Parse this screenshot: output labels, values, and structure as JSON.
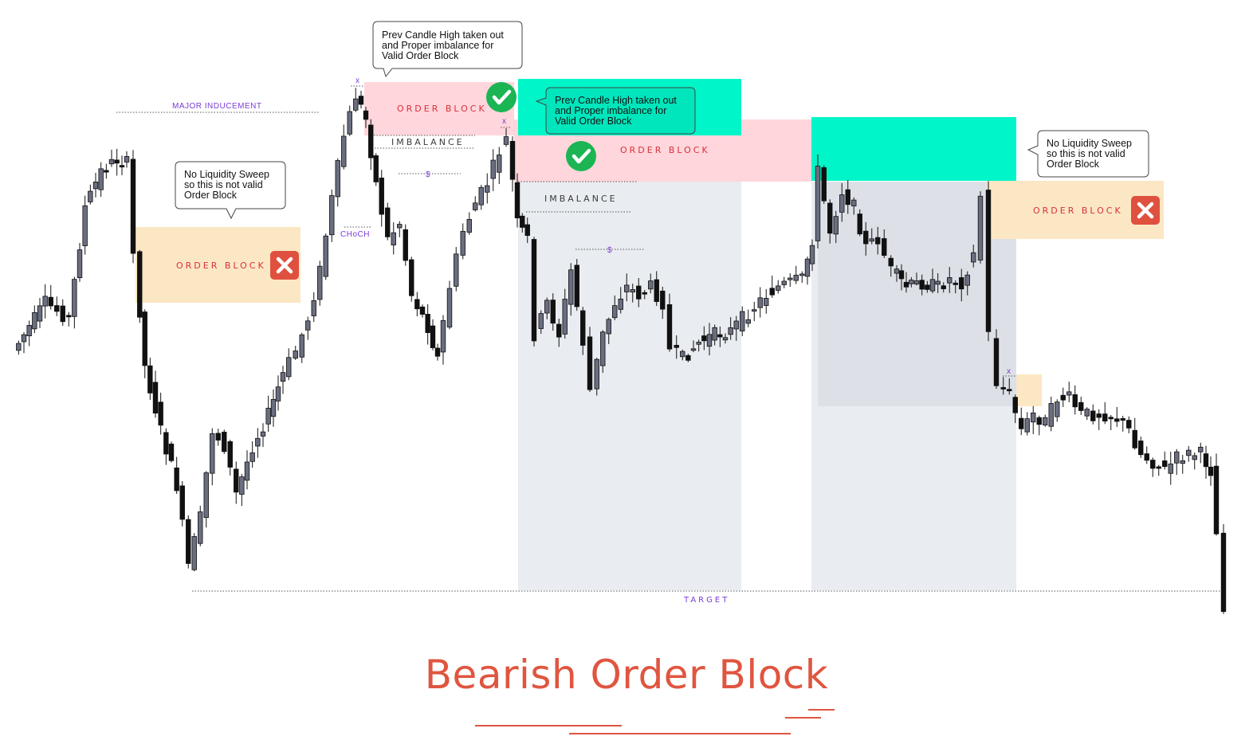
{
  "title": "Bearish Order Block",
  "colors": {
    "accent": "#e0553f",
    "order_block_valid": "#ffd6dc",
    "order_block_invalid": "#fbe7c3",
    "cyan_zone": "#00f5c8",
    "grey_zone": "#e9ecf0",
    "candle": "#6a6e80",
    "label_purple": "#7a3cd6",
    "check_green": "#1bb553",
    "cross_red": "#e0503e"
  },
  "annotations": {
    "major_inducement": "MAJOR  INDUCEMENT",
    "choch": "CHoCH",
    "x_mark": "x",
    "dollar": "$",
    "imbalance": "IMBALANCE",
    "order_block": "ORDER BLOCK",
    "target": "TARGET",
    "callout_valid": [
      "Prev Candle High taken out",
      "and Proper imbalance for",
      "Valid Order Block"
    ],
    "callout_invalid": [
      "No Liquidity Sweep",
      "so this is not valid",
      "Order Block"
    ]
  },
  "icons": {
    "check": "check-circle-icon",
    "cross": "cross-square-icon"
  },
  "chart_data": {
    "type": "candlestick",
    "title": "Bearish Order Block",
    "xlabel": "",
    "ylabel": "",
    "axes_visible": false,
    "grid": false,
    "order_blocks": [
      {
        "label": "ORDER BLOCK",
        "valid": false
      },
      {
        "label": "ORDER BLOCK",
        "valid": true
      },
      {
        "label": "ORDER BLOCK",
        "valid": true
      },
      {
        "label": "ORDER BLOCK",
        "valid": false
      }
    ],
    "imbalances": [
      "IMBALANCE",
      "IMBALANCE"
    ],
    "levels": [
      "MAJOR  INDUCEMENT",
      "CHoCH",
      "TARGET"
    ]
  }
}
